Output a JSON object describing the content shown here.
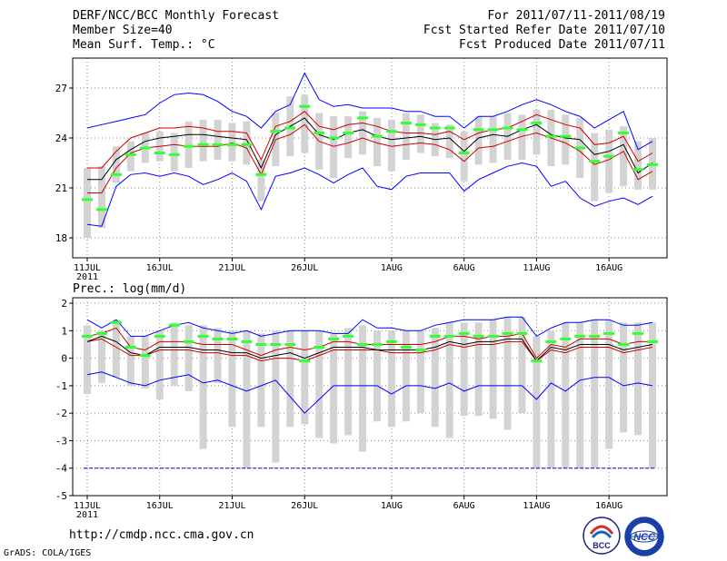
{
  "header": {
    "left": [
      "DERF/NCC/BCC Monthly Forecast",
      "Member Size=40",
      "Mean Surf. Temp.: °C"
    ],
    "right": [
      "For 2011/07/11-2011/08/19",
      "Fcst Started Refer Date 2011/07/10",
      "Fcst Produced Date 2011/07/11"
    ]
  },
  "footer": {
    "url": "http://cmdp.ncc.cma.gov.cn",
    "grads": "GrADS: COLA/IGES"
  },
  "logos": {
    "bcc": "BCC",
    "ncc": "NCC"
  },
  "colors": {
    "max_min": "#0000ff",
    "quartile": "#cc0000",
    "median": "#000000",
    "observed": "#33ff33",
    "spread": "#d3d3d3"
  },
  "chart_data": [
    {
      "type": "line",
      "title": "Mean Surf. Temp.: °C",
      "x_ticks": [
        "11JUL",
        "16JUL",
        "21JUL",
        "26JUL",
        "1AUG",
        "6AUG",
        "11AUG",
        "16AUG"
      ],
      "x_tick_index": [
        0,
        5,
        10,
        15,
        21,
        26,
        31,
        36
      ],
      "x_sublabel": "2011",
      "ylim": [
        16.8,
        28.8
      ],
      "y_ticks": [
        18,
        21,
        24,
        27
      ],
      "days": 40,
      "series": [
        {
          "name": "max",
          "values": [
            24.6,
            24.8,
            25.0,
            25.2,
            25.4,
            26.1,
            26.6,
            26.7,
            26.6,
            26.2,
            25.6,
            25.3,
            24.6,
            25.6,
            26.0,
            27.9,
            26.3,
            25.9,
            26.0,
            25.8,
            25.8,
            25.8,
            25.6,
            25.6,
            25.3,
            25.3,
            24.6,
            25.3,
            25.3,
            25.6,
            26.0,
            26.3,
            26.0,
            25.6,
            25.3,
            24.6,
            25.1,
            25.6,
            23.3,
            23.8
          ]
        },
        {
          "name": "p75",
          "values": [
            22.2,
            22.2,
            23.2,
            24.0,
            24.3,
            24.6,
            24.6,
            24.7,
            24.6,
            24.4,
            24.4,
            24.3,
            22.7,
            24.7,
            25.0,
            25.6,
            24.7,
            24.5,
            24.8,
            24.9,
            24.7,
            24.4,
            24.3,
            24.3,
            24.2,
            24.4,
            23.9,
            24.3,
            24.5,
            24.6,
            25.0,
            25.4,
            25.1,
            24.8,
            24.6,
            23.6,
            23.7,
            24.1,
            22.6,
            23.1
          ]
        },
        {
          "name": "median",
          "values": [
            21.5,
            21.5,
            22.7,
            23.3,
            23.8,
            24.0,
            24.1,
            24.2,
            24.2,
            24.1,
            24.0,
            23.9,
            22.2,
            24.2,
            24.7,
            25.2,
            24.2,
            23.9,
            24.3,
            24.5,
            24.1,
            23.9,
            24.0,
            24.1,
            23.9,
            24.0,
            23.2,
            24.0,
            24.2,
            24.1,
            24.5,
            24.8,
            24.2,
            24.0,
            23.9,
            23.0,
            23.2,
            23.6,
            21.9,
            22.5
          ]
        },
        {
          "name": "p25",
          "values": [
            20.7,
            20.7,
            22.2,
            23.1,
            23.4,
            23.5,
            23.6,
            23.5,
            23.5,
            23.5,
            23.7,
            23.4,
            21.8,
            23.9,
            24.2,
            24.8,
            23.8,
            23.5,
            23.7,
            24.0,
            23.7,
            23.5,
            23.6,
            23.7,
            23.6,
            23.3,
            22.6,
            23.4,
            23.5,
            23.8,
            24.1,
            24.3,
            24.0,
            23.7,
            23.2,
            22.4,
            22.7,
            23.2,
            21.5,
            22.0
          ]
        },
        {
          "name": "min",
          "values": [
            18.8,
            18.7,
            21.1,
            21.8,
            21.9,
            21.7,
            21.9,
            21.7,
            21.2,
            21.5,
            21.9,
            21.4,
            19.7,
            21.7,
            21.9,
            22.2,
            21.8,
            21.3,
            21.8,
            22.2,
            21.1,
            20.9,
            21.7,
            21.9,
            21.9,
            21.9,
            20.8,
            21.5,
            21.9,
            22.3,
            22.5,
            22.3,
            21.1,
            21.4,
            20.4,
            19.9,
            20.2,
            20.4,
            20.0,
            20.5
          ]
        },
        {
          "name": "observed",
          "values": [
            20.3,
            19.7,
            21.8,
            23.0,
            23.4,
            23.1,
            23.0,
            23.5,
            23.6,
            23.6,
            23.6,
            23.6,
            21.8,
            24.4,
            24.6,
            25.9,
            24.3,
            24.0,
            24.3,
            25.2,
            24.1,
            24.4,
            24.9,
            24.8,
            24.6,
            24.6,
            23.1,
            24.5,
            24.5,
            24.6,
            24.5,
            24.9,
            24.1,
            24.1,
            23.4,
            22.6,
            22.9,
            24.3,
            22.1,
            22.4
          ]
        },
        {
          "name": "spread_high",
          "values": [
            22.2,
            22.3,
            23.5,
            23.8,
            24.3,
            24.4,
            24.3,
            25.0,
            25.1,
            25.1,
            24.9,
            25.0,
            22.7,
            25.5,
            26.5,
            26.6,
            25.5,
            25.3,
            25.3,
            25.6,
            25.2,
            25.1,
            25.5,
            25.4,
            24.9,
            24.8,
            24.4,
            25.3,
            25.3,
            25.5,
            25.4,
            25.7,
            25.7,
            25.4,
            25.2,
            24.3,
            24.5,
            24.7,
            23.8,
            24.0
          ]
        },
        {
          "name": "spread_low",
          "values": [
            18.0,
            18.6,
            21.3,
            22.0,
            22.5,
            22.6,
            22.0,
            22.2,
            22.6,
            22.7,
            22.6,
            22.4,
            20.2,
            22.3,
            22.9,
            23.1,
            22.1,
            21.6,
            22.8,
            23.0,
            22.3,
            22.0,
            22.7,
            23.1,
            22.9,
            22.8,
            21.4,
            22.4,
            22.5,
            22.7,
            22.7,
            23.0,
            22.3,
            22.4,
            21.6,
            20.2,
            20.7,
            21.1,
            20.9,
            20.9
          ]
        }
      ]
    },
    {
      "type": "line",
      "title": "Prec.: log(mm/d)",
      "x_ticks": [
        "11JUL",
        "16JUL",
        "21JUL",
        "26JUL",
        "1AUG",
        "6AUG",
        "11AUG",
        "16AUG"
      ],
      "x_tick_index": [
        0,
        5,
        10,
        15,
        21,
        26,
        31,
        36
      ],
      "x_sublabel": "2011",
      "ylim": [
        -5,
        2.2
      ],
      "y_ticks": [
        -5,
        -4,
        -3,
        -2,
        -1,
        0,
        1,
        2
      ],
      "days": 40,
      "reference_line": -4,
      "series": [
        {
          "name": "max",
          "values": [
            1.4,
            1.1,
            1.4,
            0.8,
            0.8,
            1.0,
            1.2,
            1.3,
            1.1,
            1.0,
            0.9,
            1.0,
            0.8,
            0.9,
            1.0,
            1.0,
            1.0,
            0.9,
            0.9,
            1.4,
            1.1,
            1.1,
            1.0,
            1.0,
            1.2,
            1.3,
            1.4,
            1.4,
            1.4,
            1.5,
            1.5,
            0.8,
            1.1,
            1.3,
            1.3,
            1.4,
            1.4,
            1.2,
            1.2,
            1.3
          ]
        },
        {
          "name": "p75",
          "values": [
            0.8,
            0.9,
            1.1,
            0.4,
            0.3,
            0.6,
            0.6,
            0.6,
            0.5,
            0.5,
            0.5,
            0.3,
            0.1,
            0.3,
            0.4,
            0.3,
            0.4,
            0.6,
            0.6,
            0.5,
            0.5,
            0.5,
            0.5,
            0.5,
            0.6,
            0.8,
            0.8,
            0.7,
            0.8,
            0.8,
            0.9,
            0.0,
            0.5,
            0.4,
            0.7,
            0.7,
            0.7,
            0.5,
            0.6,
            0.6
          ]
        },
        {
          "name": "median",
          "values": [
            0.6,
            0.8,
            0.6,
            0.2,
            0.1,
            0.4,
            0.4,
            0.4,
            0.3,
            0.3,
            0.2,
            0.2,
            0.0,
            0.1,
            0.2,
            0.0,
            0.2,
            0.4,
            0.4,
            0.4,
            0.3,
            0.3,
            0.3,
            0.3,
            0.4,
            0.6,
            0.5,
            0.6,
            0.6,
            0.7,
            0.7,
            -0.1,
            0.4,
            0.3,
            0.5,
            0.5,
            0.5,
            0.3,
            0.4,
            0.5
          ]
        },
        {
          "name": "p25",
          "values": [
            0.6,
            0.7,
            0.4,
            0.1,
            0.1,
            0.3,
            0.3,
            0.3,
            0.2,
            0.2,
            0.1,
            0.1,
            -0.1,
            0.0,
            0.0,
            -0.1,
            0.1,
            0.3,
            0.3,
            0.3,
            0.3,
            0.2,
            0.2,
            0.2,
            0.3,
            0.5,
            0.4,
            0.5,
            0.5,
            0.6,
            0.6,
            -0.1,
            0.3,
            0.2,
            0.4,
            0.4,
            0.4,
            0.2,
            0.3,
            0.4
          ]
        },
        {
          "name": "min",
          "values": [
            -0.6,
            -0.5,
            -0.7,
            -0.9,
            -1.0,
            -0.8,
            -0.7,
            -0.6,
            -0.9,
            -0.8,
            -1.0,
            -1.2,
            -1.0,
            -0.8,
            -1.4,
            -2.0,
            -1.5,
            -1.0,
            -1.0,
            -1.0,
            -1.0,
            -1.3,
            -1.0,
            -1.0,
            -1.1,
            -0.9,
            -1.2,
            -1.0,
            -1.0,
            -1.0,
            -1.0,
            -1.5,
            -0.9,
            -1.2,
            -0.8,
            -0.7,
            -0.7,
            -1.0,
            -0.9,
            -1.0
          ]
        },
        {
          "name": "observed",
          "values": [
            0.8,
            0.9,
            1.3,
            0.4,
            0.1,
            0.8,
            1.2,
            0.6,
            0.8,
            0.7,
            0.7,
            0.6,
            0.5,
            0.5,
            0.5,
            -0.1,
            0.4,
            0.7,
            0.8,
            0.5,
            0.5,
            0.6,
            0.4,
            0.3,
            0.8,
            0.8,
            0.9,
            0.8,
            0.8,
            0.9,
            0.9,
            -0.1,
            0.6,
            0.7,
            0.8,
            0.8,
            0.9,
            0.5,
            0.9,
            0.6
          ]
        },
        {
          "name": "spread_high",
          "values": [
            1.2,
            1.0,
            1.4,
            0.8,
            0.8,
            1.0,
            1.3,
            1.2,
            1.2,
            1.1,
            1.0,
            1.0,
            0.9,
            1.0,
            1.0,
            1.0,
            1.0,
            0.9,
            1.1,
            1.2,
            1.0,
            1.0,
            1.0,
            1.0,
            1.1,
            1.3,
            1.3,
            1.3,
            1.4,
            1.5,
            1.5,
            0.8,
            1.0,
            1.3,
            1.3,
            1.4,
            1.4,
            1.3,
            1.3,
            1.3
          ]
        },
        {
          "name": "spread_low",
          "values": [
            -1.3,
            -0.9,
            -0.7,
            -1.0,
            -1.1,
            -1.5,
            -1.0,
            -1.2,
            -3.3,
            -0.9,
            -2.5,
            -4.0,
            -2.5,
            -3.8,
            -2.5,
            -2.4,
            -2.9,
            -3.1,
            -2.8,
            -3.4,
            -2.3,
            -2.5,
            -2.3,
            -2.0,
            -2.5,
            -2.9,
            -2.1,
            -2.1,
            -2.2,
            -2.6,
            -2.0,
            -4.0,
            -4.0,
            -4.0,
            -4.0,
            -4.0,
            -3.3,
            -2.7,
            -2.8,
            -4.0
          ]
        }
      ]
    }
  ]
}
